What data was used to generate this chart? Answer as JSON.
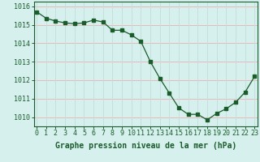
{
  "x": [
    0,
    1,
    2,
    3,
    4,
    5,
    6,
    7,
    8,
    9,
    10,
    11,
    12,
    13,
    14,
    15,
    16,
    17,
    18,
    19,
    20,
    21,
    22,
    23
  ],
  "y": [
    1015.7,
    1015.35,
    1015.2,
    1015.1,
    1015.05,
    1015.1,
    1015.25,
    1015.15,
    1014.7,
    1014.7,
    1014.45,
    1014.1,
    1013.0,
    1012.1,
    1011.3,
    1010.5,
    1010.15,
    1010.15,
    1009.85,
    1010.2,
    1010.45,
    1010.8,
    1011.35,
    1012.2
  ],
  "line_color": "#1a5c2a",
  "marker_color": "#1a5c2a",
  "bg_color": "#d6f0ee",
  "grid_color_h": "#e8b8b8",
  "grid_color_v": "#c8dede",
  "xlabel": "Graphe pression niveau de la mer (hPa)",
  "xlabel_fontsize": 7,
  "tick_fontsize": 6,
  "ylim_min": 1009.5,
  "ylim_max": 1016.25,
  "yticks": [
    1010,
    1011,
    1012,
    1013,
    1014,
    1015,
    1016
  ],
  "xlim_min": -0.3,
  "xlim_max": 23.3
}
